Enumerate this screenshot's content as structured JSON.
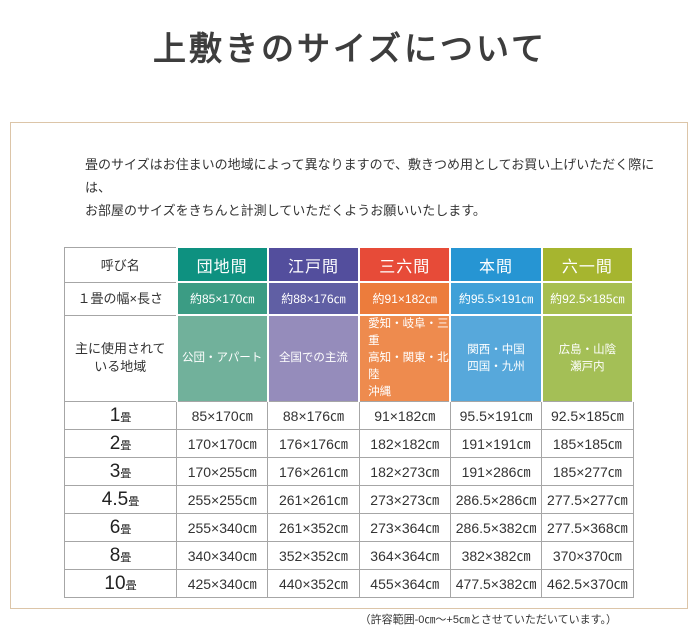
{
  "page_title": "上敷きのサイズについて",
  "intro": {
    "line1": "畳のサイズはお住まいの地域によって異なりますので、敷きつめ用としてお買い上げいただく際には、",
    "line2": "お部屋のサイズをきちんと計測していただくようお願いいたします。"
  },
  "table": {
    "corner_header": "呼び名",
    "size_row_label": "１畳の幅×長さ",
    "region_row_label_lines": [
      "主に使用されて",
      "いる地域"
    ],
    "border_color": "#a6a6a6",
    "panel_border_color": "#dcc5a8",
    "columns": [
      {
        "name": "団地間",
        "colors": {
          "header": "#0e9180",
          "size": "#3b9c84",
          "region": "#71b19b"
        },
        "size": "約85×170㎝",
        "regions": [
          "公団・アパート"
        ]
      },
      {
        "name": "江戸間",
        "colors": {
          "header": "#534e9d",
          "size": "#605fa4",
          "region": "#958cbb"
        },
        "size": "約88×176㎝",
        "regions": [
          "全国での主流"
        ]
      },
      {
        "name": "三六間",
        "colors": {
          "header": "#e74b38",
          "size": "#ec7c3c",
          "region": "#ee8b4e"
        },
        "size": "約91×182㎝",
        "regions": [
          "愛知・岐阜・三重",
          "高知・関東・北陸",
          "沖縄"
        ]
      },
      {
        "name": "本間",
        "colors": {
          "header": "#2695d3",
          "size": "#3fa0d8",
          "region": "#57a8db"
        },
        "size": "約95.5×191㎝",
        "regions": [
          "関西・中国",
          "四国・九州"
        ]
      },
      {
        "name": "六一間",
        "colors": {
          "header": "#a6b52f",
          "size": "#a7bf50",
          "region": "#a4bf56"
        },
        "size": "約92.5×185㎝",
        "regions": [
          "広島・山陰",
          "瀬戸内"
        ]
      }
    ],
    "size_rows": [
      {
        "num": "1",
        "suffix": "畳",
        "values": [
          "85×170㎝",
          "88×176㎝",
          "91×182㎝",
          "95.5×191㎝",
          "92.5×185㎝"
        ]
      },
      {
        "num": "2",
        "suffix": "畳",
        "values": [
          "170×170㎝",
          "176×176㎝",
          "182×182㎝",
          "191×191㎝",
          "185×185㎝"
        ]
      },
      {
        "num": "3",
        "suffix": "畳",
        "values": [
          "170×255㎝",
          "176×261㎝",
          "182×273㎝",
          "191×286㎝",
          "185×277㎝"
        ]
      },
      {
        "num": "4.5",
        "suffix": "畳",
        "values": [
          "255×255㎝",
          "261×261㎝",
          "273×273㎝",
          "286.5×286㎝",
          "277.5×277㎝"
        ]
      },
      {
        "num": "6",
        "suffix": "畳",
        "values": [
          "255×340㎝",
          "261×352㎝",
          "273×364㎝",
          "286.5×382㎝",
          "277.5×368㎝"
        ]
      },
      {
        "num": "8",
        "suffix": "畳",
        "values": [
          "340×340㎝",
          "352×352㎝",
          "364×364㎝",
          "382×382㎝",
          "370×370㎝"
        ]
      },
      {
        "num": "10",
        "suffix": "畳",
        "values": [
          "425×340㎝",
          "440×352㎝",
          "455×364㎝",
          "477.5×382㎝",
          "462.5×370㎝"
        ]
      }
    ]
  },
  "footnote": "（許容範囲-0㎝～+5㎝とさせていただいています。）"
}
